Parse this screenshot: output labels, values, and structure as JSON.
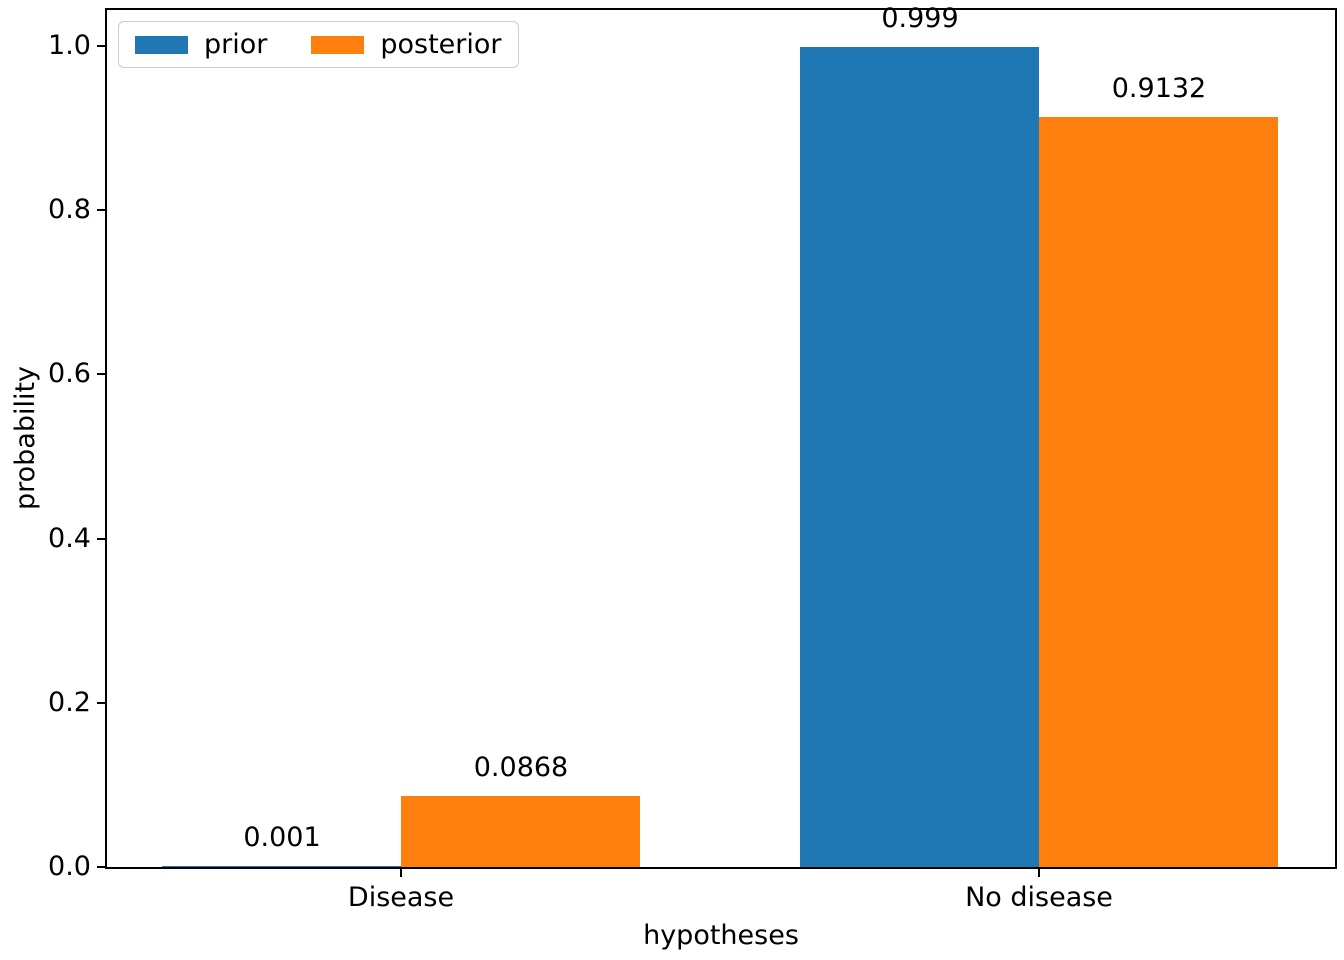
{
  "chart_data": {
    "type": "bar",
    "categories": [
      "Disease",
      "No disease"
    ],
    "series": [
      {
        "name": "prior",
        "color": "#1f77b4",
        "values": [
          0.001,
          0.999
        ]
      },
      {
        "name": "posterior",
        "color": "#ff7f0e",
        "values": [
          0.0868,
          0.9132
        ]
      }
    ],
    "bar_value_labels": [
      [
        "0.001",
        "0.999"
      ],
      [
        "0.0868",
        "0.9132"
      ]
    ],
    "title": "",
    "xlabel": "hypotheses",
    "ylabel": "probability",
    "ylim": [
      0,
      1.0438
    ],
    "yticks": [
      0.0,
      0.2,
      0.4,
      0.6,
      0.8,
      1.0
    ],
    "ytick_labels": [
      "0.0",
      "0.2",
      "0.4",
      "0.6",
      "0.8",
      "1.0"
    ],
    "grid": false,
    "legend": {
      "position": "upper left",
      "entries": [
        "prior",
        "posterior"
      ]
    }
  },
  "colors": {
    "background": "#ffffff",
    "spine": "#000000",
    "text": "#000000",
    "legend_border": "#cccccc",
    "series_blue": "#1f77b4",
    "series_orange": "#ff7f0e"
  }
}
